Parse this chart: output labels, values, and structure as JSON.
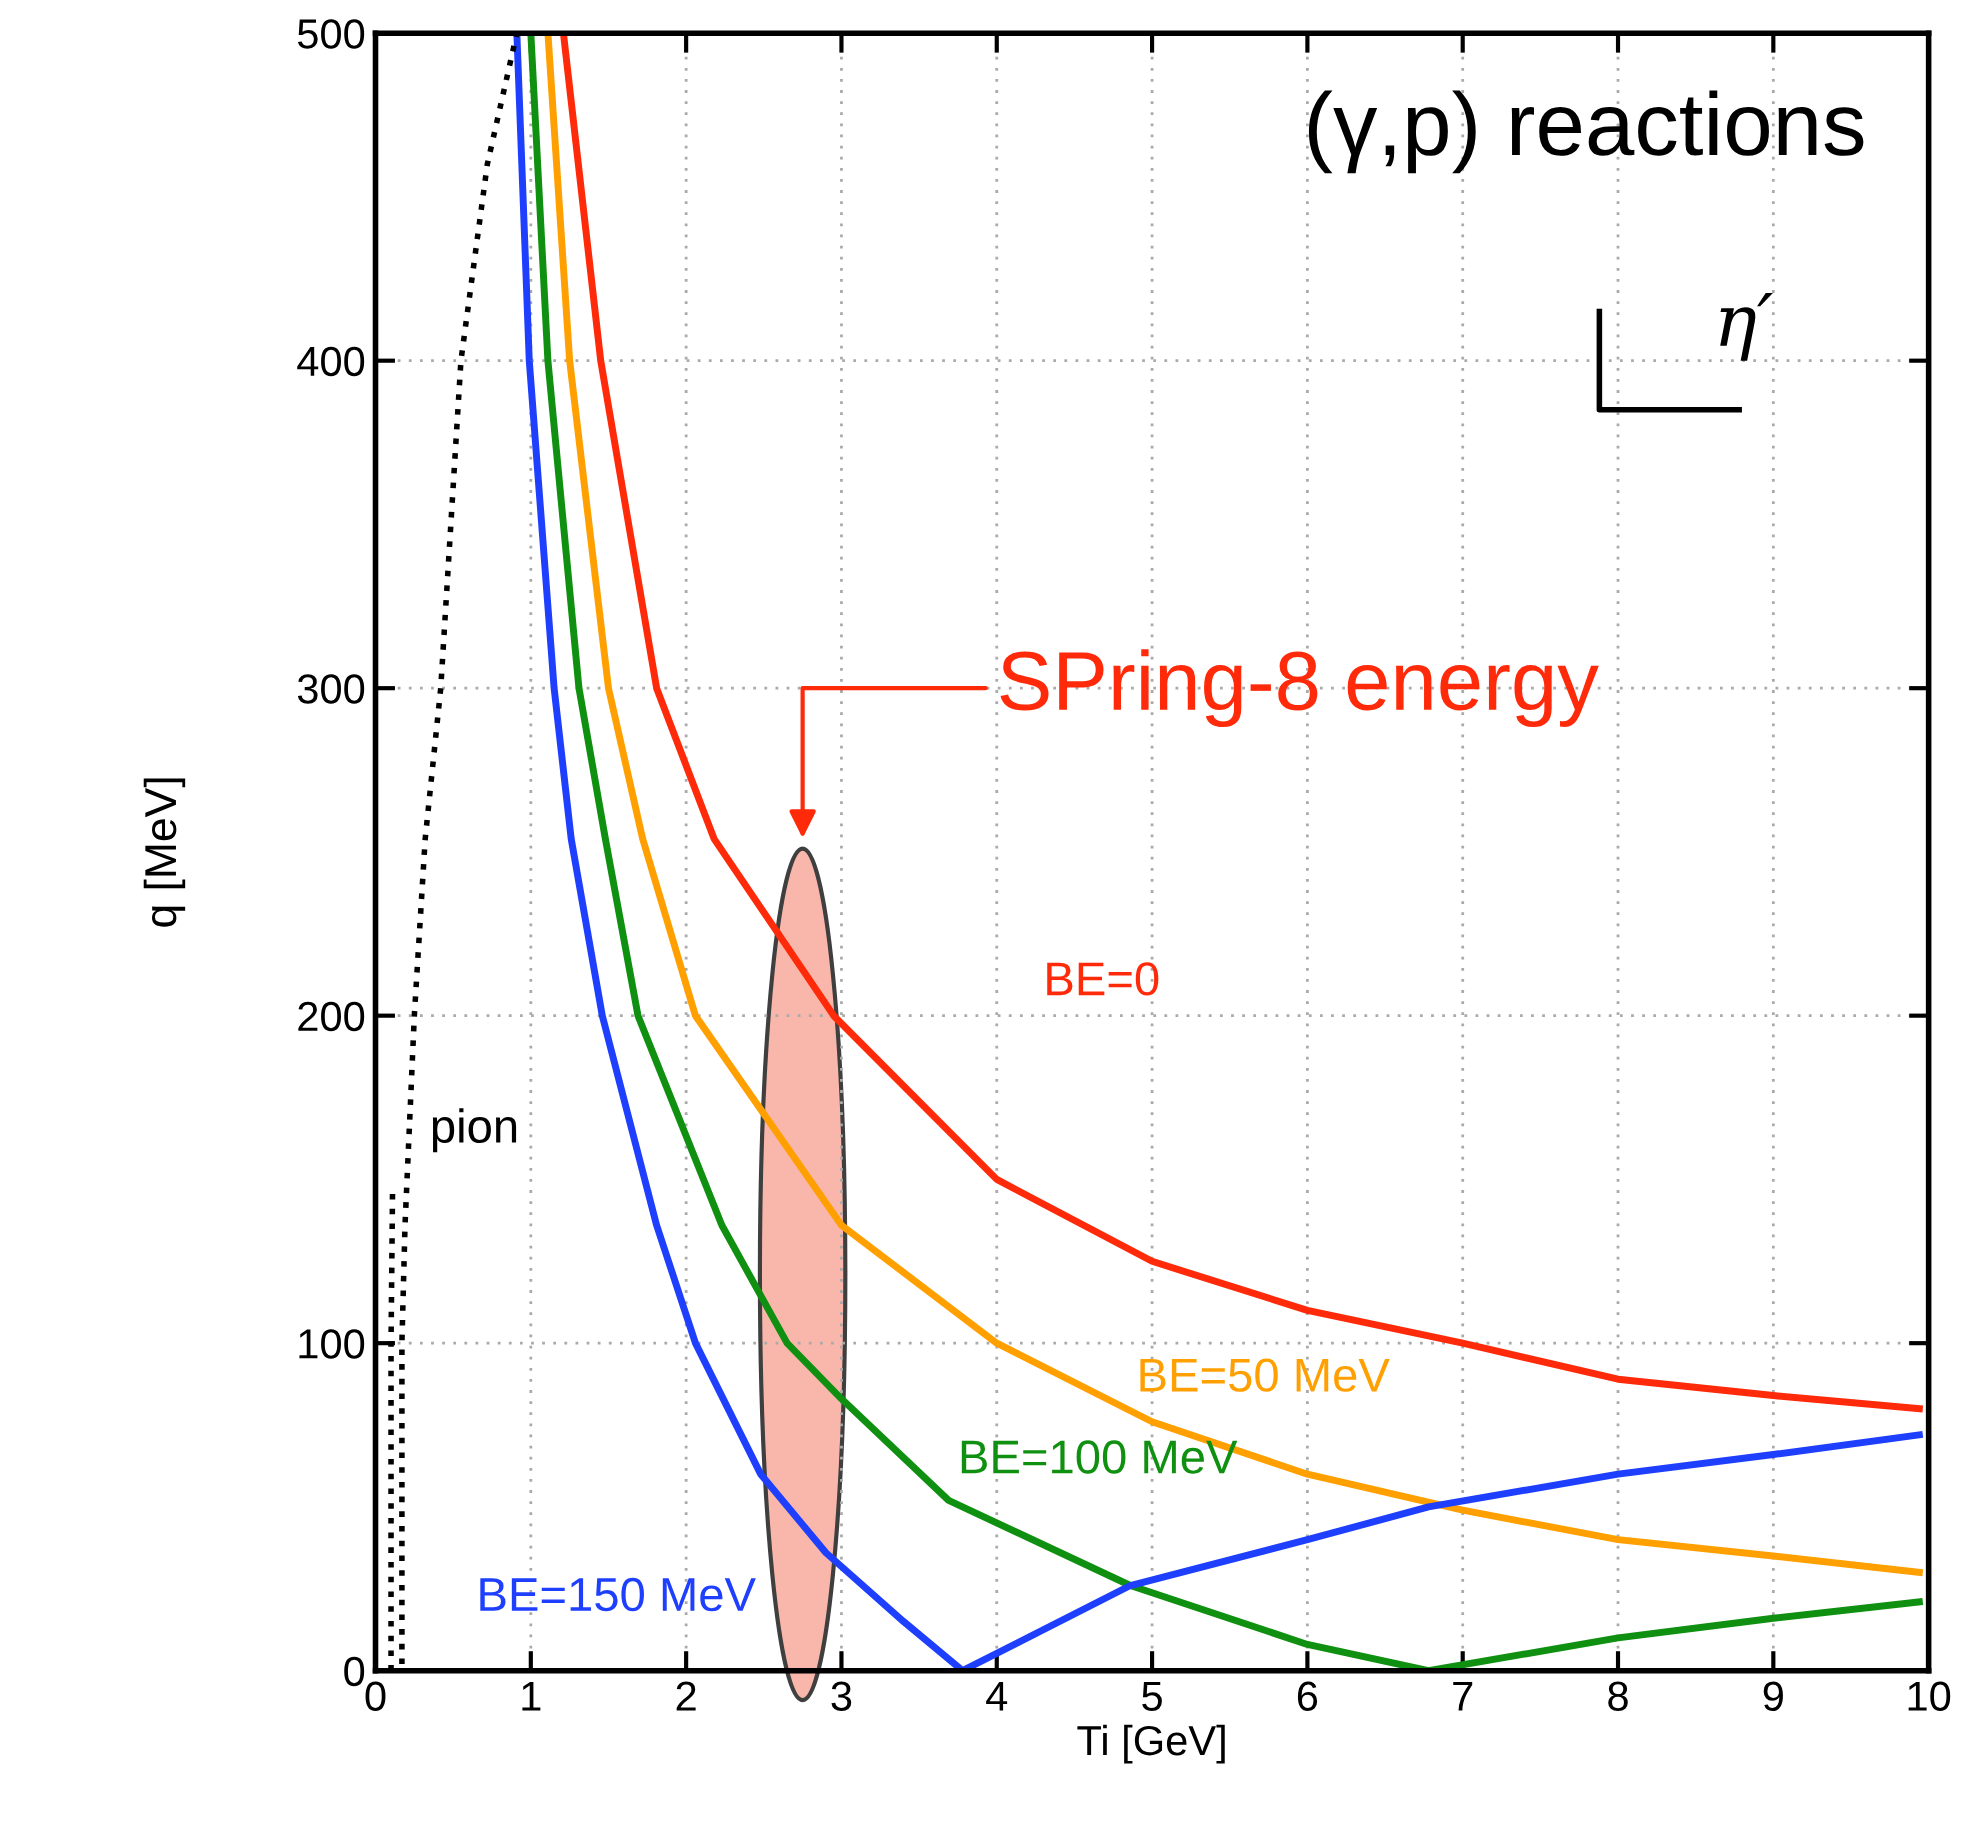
{
  "chart_data": {
    "type": "line",
    "xlabel": "Ti [GeV]",
    "ylabel": "q [MeV]",
    "xlim": [
      0,
      10
    ],
    "xticks": [
      0,
      1,
      2,
      3,
      4,
      5,
      6,
      7,
      8,
      9,
      10
    ],
    "ylim": [
      0,
      500
    ],
    "yticks": [
      0,
      100,
      200,
      300,
      400,
      500
    ],
    "grid": true,
    "legend": false,
    "marker": "none",
    "series": [
      {
        "name": "BE=0",
        "color": "#ff2a0a",
        "line_style": "solid",
        "x": [
          1.21,
          1.45,
          1.81,
          2.18,
          2.95,
          4.0,
          5.0,
          6.0,
          7.0,
          8.0,
          9.0,
          9.94
        ],
        "values": [
          500,
          400,
          300,
          254,
          200,
          150,
          125,
          110,
          100,
          89,
          84,
          80
        ]
      },
      {
        "name": "BE=50 MeV",
        "color": "#ffa000",
        "line_style": "solid",
        "x": [
          1.11,
          1.25,
          1.5,
          1.72,
          2.06,
          3.0,
          4.0,
          5.0,
          6.0,
          7.0,
          8.0,
          9.0,
          9.94
        ],
        "values": [
          500,
          400,
          300,
          254,
          200,
          136,
          100,
          76,
          60,
          49,
          40,
          35,
          30
        ]
      },
      {
        "name": "BE=100 MeV",
        "color": "#109010",
        "line_style": "solid",
        "x": [
          1.0,
          1.11,
          1.31,
          1.48,
          1.69,
          2.23,
          2.65,
          3.0,
          3.69,
          4.86,
          6.0,
          6.78,
          8.0,
          9.0,
          9.94
        ],
        "values": [
          500,
          400,
          300,
          254,
          200,
          136,
          100,
          83,
          52,
          26,
          8,
          0,
          10,
          16,
          21
        ]
      },
      {
        "name": "BE=150 MeV",
        "color": "#1f3fff",
        "line_style": "solid",
        "x": [
          0.91,
          0.99,
          1.15,
          1.26,
          1.46,
          1.81,
          2.06,
          2.48,
          2.9,
          3.4,
          3.78,
          4.86,
          6.0,
          6.78,
          8.0,
          9.0,
          9.94
        ],
        "values": [
          500,
          400,
          300,
          254,
          200,
          136,
          100,
          60,
          36,
          15,
          0,
          26,
          40,
          50,
          60,
          66,
          72
        ]
      },
      {
        "name": "pion",
        "color": "#000000",
        "line_style": "dotted",
        "x": [
          0.17,
          0.17,
          0.19,
          0.25,
          0.32,
          0.42,
          0.55,
          0.72,
          0.91
        ],
        "values": [
          2,
          100,
          136,
          200,
          254,
          300,
          400,
          460,
          500
        ]
      },
      {
        "color": "#000000",
        "line_style": "dotted",
        "x": [
          0.1,
          0.1,
          0.11
        ],
        "values": [
          0,
          100,
          148
        ]
      }
    ],
    "annotations": [
      "(γ,p) reactions",
      "η′",
      "SPring-8 energy"
    ]
  }
}
